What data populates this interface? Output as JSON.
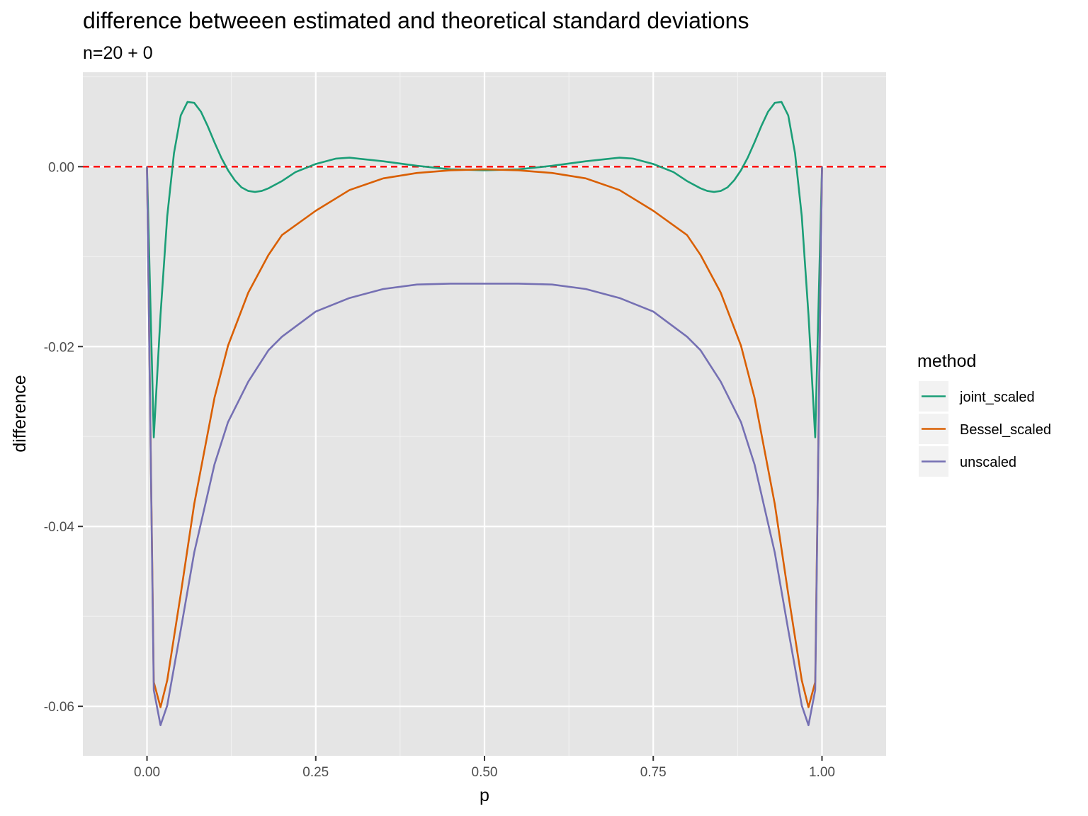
{
  "chart_data": {
    "type": "line",
    "title": "difference betweeen estimated and theoretical standard deviations",
    "subtitle": "n=20 + 0",
    "xlabel": "p",
    "ylabel": "difference",
    "xlim": [
      -0.095,
      1.095
    ],
    "ylim": [
      -0.0655,
      0.0105
    ],
    "x_ticks": [
      0,
      0.25,
      0.5,
      0.75,
      1
    ],
    "x_tick_labels": [
      "0.00",
      "0.25",
      "0.50",
      "0.75",
      "1.00"
    ],
    "y_ticks": [
      0,
      -0.02,
      -0.04,
      -0.06
    ],
    "y_tick_labels": [
      "0.00",
      "-0.02",
      "-0.04",
      "-0.06"
    ],
    "grid": true,
    "background": "#e5e5e5",
    "reference_line": {
      "y": 0,
      "style": "dashed",
      "color": "#ff0000"
    },
    "legend": {
      "title": "method",
      "position": "right"
    },
    "series": [
      {
        "name": "joint_scaled",
        "color": "#1b9e77",
        "x": [
          0,
          0.01,
          0.02,
          0.03,
          0.04,
          0.05,
          0.06,
          0.07,
          0.08,
          0.09,
          0.1,
          0.11,
          0.12,
          0.13,
          0.14,
          0.15,
          0.16,
          0.17,
          0.18,
          0.2,
          0.22,
          0.25,
          0.28,
          0.3,
          0.35,
          0.4,
          0.45,
          0.5,
          0.55,
          0.6,
          0.65,
          0.7,
          0.72,
          0.75,
          0.78,
          0.8,
          0.82,
          0.83,
          0.84,
          0.85,
          0.86,
          0.87,
          0.88,
          0.89,
          0.9,
          0.91,
          0.92,
          0.93,
          0.94,
          0.95,
          0.96,
          0.97,
          0.98,
          0.99,
          1.0
        ],
        "y": [
          0,
          -0.0301,
          -0.0165,
          -0.0055,
          0.0015,
          0.0057,
          0.0072,
          0.0071,
          0.0061,
          0.0045,
          0.0027,
          0.001,
          -0.0004,
          -0.0015,
          -0.0023,
          -0.0027,
          -0.0028,
          -0.0027,
          -0.0024,
          -0.0016,
          -0.0006,
          0.0003,
          0.0009,
          0.001,
          0.0006,
          0.0001,
          -0.0003,
          -0.0004,
          -0.0003,
          0.0001,
          0.0006,
          0.001,
          0.0009,
          0.0003,
          -0.0006,
          -0.0016,
          -0.0024,
          -0.0027,
          -0.0028,
          -0.0027,
          -0.0023,
          -0.0015,
          -0.0004,
          0.001,
          0.0027,
          0.0045,
          0.0061,
          0.0071,
          0.0072,
          0.0057,
          0.0015,
          -0.0055,
          -0.0165,
          -0.0301,
          0
        ]
      },
      {
        "name": "Bessel_scaled",
        "color": "#d95f02",
        "x": [
          0,
          0.01,
          0.02,
          0.03,
          0.05,
          0.07,
          0.1,
          0.12,
          0.15,
          0.18,
          0.2,
          0.25,
          0.3,
          0.35,
          0.4,
          0.45,
          0.5,
          0.55,
          0.6,
          0.65,
          0.7,
          0.75,
          0.8,
          0.82,
          0.85,
          0.88,
          0.9,
          0.93,
          0.95,
          0.97,
          0.98,
          0.99,
          1.0
        ],
        "y": [
          0,
          -0.0573,
          -0.0601,
          -0.0571,
          -0.0475,
          -0.0375,
          -0.0257,
          -0.0199,
          -0.014,
          -0.0098,
          -0.0076,
          -0.0049,
          -0.0026,
          -0.0013,
          -0.0007,
          -0.0004,
          -0.0003,
          -0.0004,
          -0.0007,
          -0.0013,
          -0.0026,
          -0.0049,
          -0.0076,
          -0.0098,
          -0.014,
          -0.0199,
          -0.0257,
          -0.0375,
          -0.0475,
          -0.0571,
          -0.0601,
          -0.0573,
          0
        ]
      },
      {
        "name": "unscaled",
        "color": "#7570b3",
        "x": [
          0,
          0.01,
          0.02,
          0.03,
          0.05,
          0.07,
          0.1,
          0.12,
          0.15,
          0.18,
          0.2,
          0.25,
          0.3,
          0.35,
          0.4,
          0.45,
          0.5,
          0.55,
          0.6,
          0.65,
          0.7,
          0.75,
          0.8,
          0.82,
          0.85,
          0.88,
          0.9,
          0.93,
          0.95,
          0.97,
          0.98,
          0.99,
          1.0
        ],
        "y": [
          0,
          -0.0582,
          -0.0621,
          -0.0599,
          -0.0515,
          -0.0429,
          -0.0331,
          -0.0284,
          -0.0239,
          -0.0204,
          -0.0189,
          -0.0161,
          -0.0146,
          -0.0136,
          -0.0131,
          -0.013,
          -0.013,
          -0.013,
          -0.0131,
          -0.0136,
          -0.0146,
          -0.0161,
          -0.0189,
          -0.0204,
          -0.0239,
          -0.0284,
          -0.0331,
          -0.0429,
          -0.0515,
          -0.0599,
          -0.0621,
          -0.0582,
          0
        ]
      }
    ]
  }
}
